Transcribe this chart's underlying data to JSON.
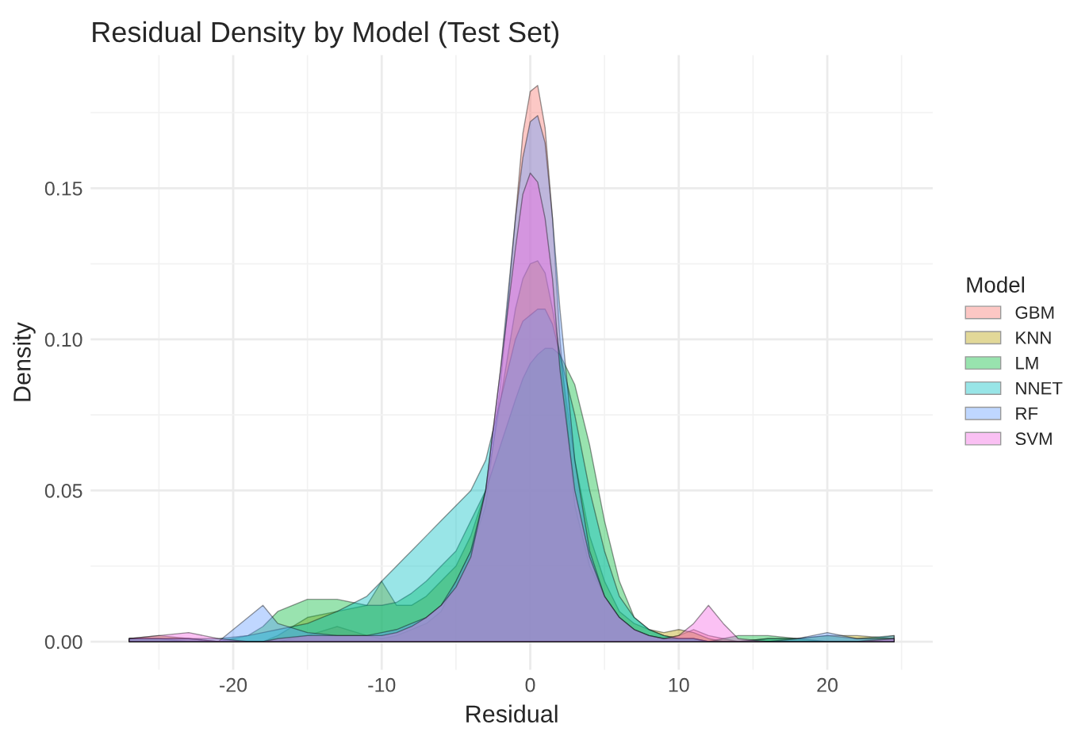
{
  "chart_data": {
    "type": "area",
    "title": "Residual Density by Model (Test Set)",
    "xlabel": "Residual",
    "ylabel": "Density",
    "legend_title": "Model",
    "legend": "right",
    "grid": true,
    "x": [
      -27,
      -25,
      -23,
      -21,
      -19,
      -18,
      -17,
      -15,
      -13,
      -11,
      -10,
      -9,
      -8,
      -7,
      -6,
      -5,
      -4,
      -3,
      -2,
      -1,
      -0.5,
      0,
      0.5,
      1,
      1.5,
      2,
      3,
      4,
      5,
      6,
      7,
      8,
      9,
      10,
      11,
      12,
      13,
      14,
      16,
      18,
      20,
      22,
      24.5
    ],
    "series": [
      {
        "name": "GBM",
        "color": "#f8766d",
        "values": [
          0.001,
          0.001,
          0.001,
          0,
          0,
          0,
          0,
          0.002,
          0.005,
          0.002,
          0.001,
          0.002,
          0.004,
          0.006,
          0.01,
          0.02,
          0.03,
          0.045,
          0.085,
          0.14,
          0.168,
          0.182,
          0.184,
          0.17,
          0.14,
          0.1,
          0.045,
          0.025,
          0.015,
          0.008,
          0.004,
          0.002,
          0.001,
          0.002,
          0.004,
          0.002,
          0.001,
          0,
          0,
          0,
          0,
          0,
          0.002
        ]
      },
      {
        "name": "KNN",
        "color": "#b79f00",
        "values": [
          0.001,
          0.002,
          0.001,
          0,
          0,
          0,
          0.002,
          0.008,
          0.01,
          0.012,
          0.02,
          0.012,
          0.012,
          0.015,
          0.02,
          0.025,
          0.035,
          0.05,
          0.08,
          0.11,
          0.12,
          0.125,
          0.126,
          0.122,
          0.11,
          0.095,
          0.06,
          0.035,
          0.02,
          0.01,
          0.006,
          0.004,
          0.003,
          0.004,
          0.003,
          0.001,
          0,
          0,
          0.001,
          0.001,
          0.002,
          0.002,
          0.001
        ]
      },
      {
        "name": "LM",
        "color": "#00ba38",
        "values": [
          0.001,
          0.001,
          0,
          0,
          0.002,
          0.005,
          0.01,
          0.014,
          0.014,
          0.012,
          0.012,
          0.013,
          0.016,
          0.02,
          0.025,
          0.03,
          0.04,
          0.05,
          0.065,
          0.08,
          0.087,
          0.092,
          0.095,
          0.097,
          0.097,
          0.095,
          0.085,
          0.065,
          0.04,
          0.02,
          0.008,
          0.004,
          0.002,
          0.001,
          0.001,
          0,
          0.001,
          0.002,
          0.002,
          0.001,
          0,
          0,
          0
        ]
      },
      {
        "name": "NNET",
        "color": "#00bfc4",
        "values": [
          0.001,
          0.001,
          0.001,
          0.001,
          0.002,
          0.003,
          0.004,
          0.006,
          0.01,
          0.015,
          0.02,
          0.025,
          0.03,
          0.035,
          0.04,
          0.045,
          0.05,
          0.06,
          0.08,
          0.1,
          0.106,
          0.108,
          0.11,
          0.11,
          0.105,
          0.095,
          0.075,
          0.05,
          0.03,
          0.015,
          0.008,
          0.004,
          0.002,
          0.001,
          0.001,
          0,
          0,
          0,
          0.001,
          0.001,
          0.002,
          0.001,
          0.002
        ]
      },
      {
        "name": "RF",
        "color": "#619cff",
        "values": [
          0.001,
          0.001,
          0.001,
          0,
          0.008,
          0.012,
          0.006,
          0.003,
          0.002,
          0.002,
          0.003,
          0.004,
          0.006,
          0.008,
          0.012,
          0.02,
          0.03,
          0.05,
          0.09,
          0.14,
          0.16,
          0.172,
          0.174,
          0.165,
          0.14,
          0.11,
          0.06,
          0.03,
          0.015,
          0.008,
          0.004,
          0.002,
          0.001,
          0.001,
          0.001,
          0,
          0,
          0,
          0,
          0.001,
          0.003,
          0.001,
          0.001
        ]
      },
      {
        "name": "SVM",
        "color": "#f564e3",
        "values": [
          0.001,
          0.002,
          0.003,
          0.001,
          0,
          0,
          0.001,
          0.002,
          0.002,
          0.002,
          0.002,
          0.003,
          0.005,
          0.008,
          0.012,
          0.018,
          0.028,
          0.05,
          0.09,
          0.13,
          0.148,
          0.155,
          0.152,
          0.14,
          0.12,
          0.09,
          0.05,
          0.028,
          0.015,
          0.008,
          0.004,
          0.002,
          0.001,
          0.002,
          0.006,
          0.012,
          0.006,
          0.001,
          0,
          0,
          0,
          0,
          0.001
        ]
      }
    ],
    "xlim": [
      -29.6,
      27.1
    ],
    "xticks": [
      -20,
      -10,
      0,
      10,
      20
    ],
    "ylim": [
      -0.0093,
      0.194
    ],
    "yticks": [
      {
        "value": 0,
        "label": "0.00"
      },
      0.05,
      {
        "value": 0.1,
        "label": "0.10"
      },
      0.15
    ]
  }
}
